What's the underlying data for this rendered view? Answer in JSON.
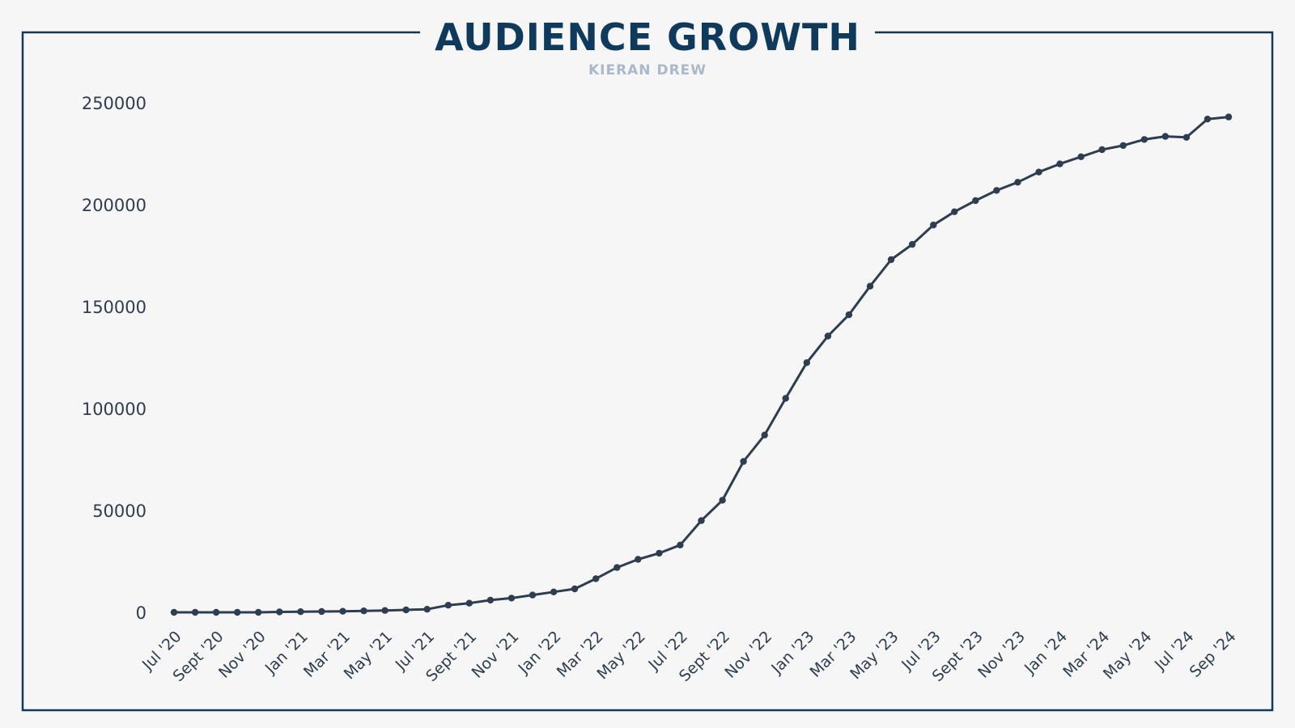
{
  "chart_data": {
    "type": "line",
    "title": "AUDIENCE GROWTH",
    "subtitle": "KIERAN DREW",
    "xlabel": "",
    "ylabel": "",
    "ylim": [
      0,
      250000
    ],
    "yticks": [
      0,
      50000,
      100000,
      150000,
      200000,
      250000
    ],
    "grid": false,
    "legend": "none",
    "x_tick_labels": [
      "Jul '20",
      "Sept '20",
      "Nov '20",
      "Jan '21",
      "Mar '21",
      "May '21",
      "Jul '21",
      "Sept '21",
      "Nov '21",
      "Jan '22",
      "Mar '22",
      "May '22",
      "Jul '22",
      "Sept '22",
      "Nov '22",
      "Jan '23",
      "Mar '23",
      "May '23",
      "Jul '23",
      "Sept '23",
      "Nov '23",
      "Jan '24",
      "Mar '24",
      "May '24",
      "Jul '24",
      "Sep '24"
    ],
    "x": [
      "2020-07",
      "2020-08",
      "2020-09",
      "2020-10",
      "2020-11",
      "2020-12",
      "2021-01",
      "2021-02",
      "2021-03",
      "2021-04",
      "2021-05",
      "2021-06",
      "2021-07",
      "2021-08",
      "2021-09",
      "2021-10",
      "2021-11",
      "2021-12",
      "2022-01",
      "2022-02",
      "2022-03",
      "2022-04",
      "2022-05",
      "2022-06",
      "2022-07",
      "2022-08",
      "2022-09",
      "2022-10",
      "2022-11",
      "2022-12",
      "2023-01",
      "2023-02",
      "2023-03",
      "2023-04",
      "2023-05",
      "2023-06",
      "2023-07",
      "2023-08",
      "2023-09",
      "2023-10",
      "2023-11",
      "2023-12",
      "2024-01",
      "2024-02",
      "2024-03",
      "2024-04",
      "2024-05",
      "2024-06",
      "2024-07",
      "2024-08",
      "2024-09"
    ],
    "series": [
      {
        "values": [
          0,
          0,
          0,
          0,
          0,
          200,
          300,
          400,
          500,
          700,
          900,
          1200,
          1500,
          3500,
          4500,
          6000,
          7000,
          8500,
          10000,
          11500,
          16500,
          22000,
          26000,
          29000,
          33000,
          45000,
          55000,
          74000,
          87000,
          105000,
          122500,
          135500,
          146000,
          160000,
          173000,
          180500,
          190000,
          196500,
          202000,
          207000,
          211000,
          216000,
          220000,
          223500,
          227000,
          229000,
          232000,
          233500,
          233000,
          242000,
          243000
        ]
      }
    ],
    "colors": {
      "line": "#2e3d4f",
      "title": "#0f3a5c",
      "subtitle": "#a9b9c9",
      "frame": "#0f3a5c",
      "tick_text": "#2e3d4f"
    }
  }
}
